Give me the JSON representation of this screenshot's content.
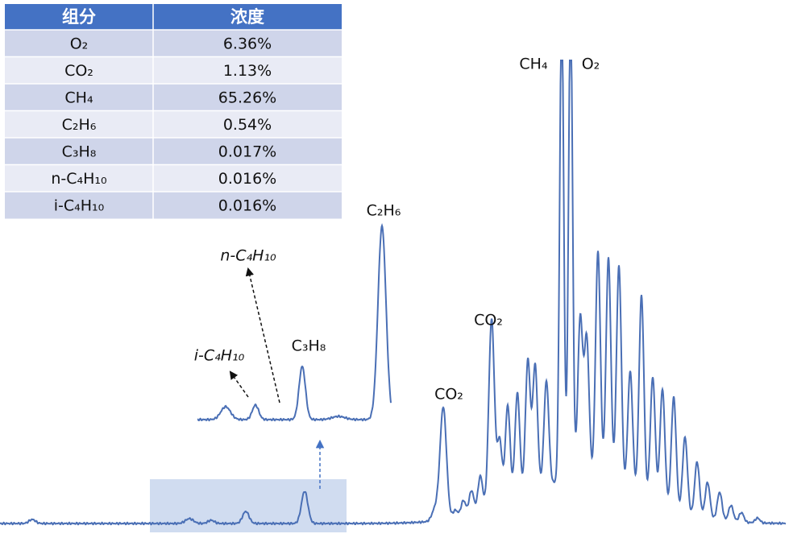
{
  "table": {
    "header": [
      "组分",
      "浓度"
    ],
    "rows": [
      [
        "O₂",
        "6.36%"
      ],
      [
        "CO₂",
        "1.13%"
      ],
      [
        "CH₄",
        "65.26%"
      ],
      [
        "C₂H₆",
        "0.54%"
      ],
      [
        "C₃H₈",
        "0.017%"
      ],
      [
        "n-C₄H₁₀",
        "0.016%"
      ],
      [
        "i-C₄H₁₀",
        "0.016%"
      ]
    ]
  },
  "peak_labels": {
    "ch4": "CH₄",
    "o2": "O₂",
    "co2_high": "CO₂",
    "co2_low": "CO₂",
    "c2h6": "C₂H₆",
    "c3h8": "C₃H₈",
    "n_c4h10": "n-C₄H₁₀",
    "i_c4h10": "i-C₄H₁₀"
  }
}
